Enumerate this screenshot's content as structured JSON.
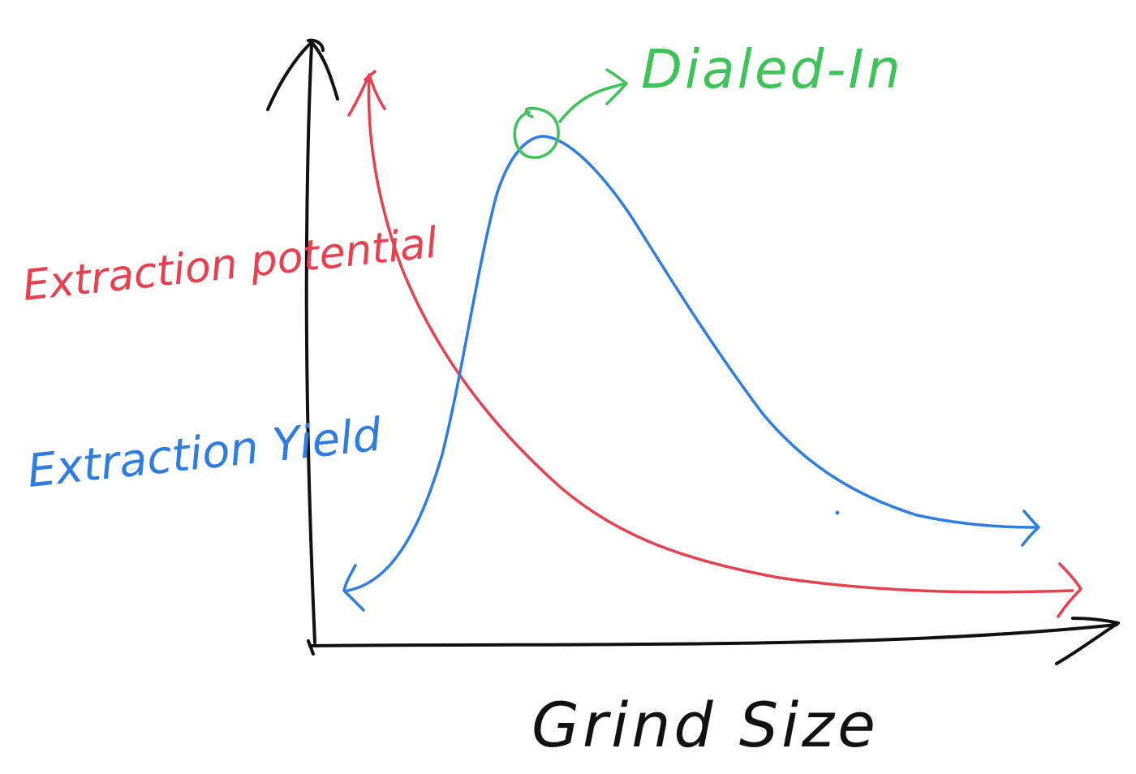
{
  "chart_data": {
    "type": "line",
    "title": "",
    "xlabel": "Grind Size",
    "ylabel": "",
    "grid": false,
    "series": [
      {
        "name": "Extraction potential",
        "color": "#e8404f",
        "shape": "decreasing-curve"
      },
      {
        "name": "Extraction Yield",
        "color": "#2f7de0",
        "shape": "peaked-curve"
      }
    ],
    "annotations": [
      {
        "text": "Dialed-In",
        "color": "#3fc25a",
        "target": "Extraction Yield peak"
      }
    ],
    "axis_color": "#111111"
  }
}
